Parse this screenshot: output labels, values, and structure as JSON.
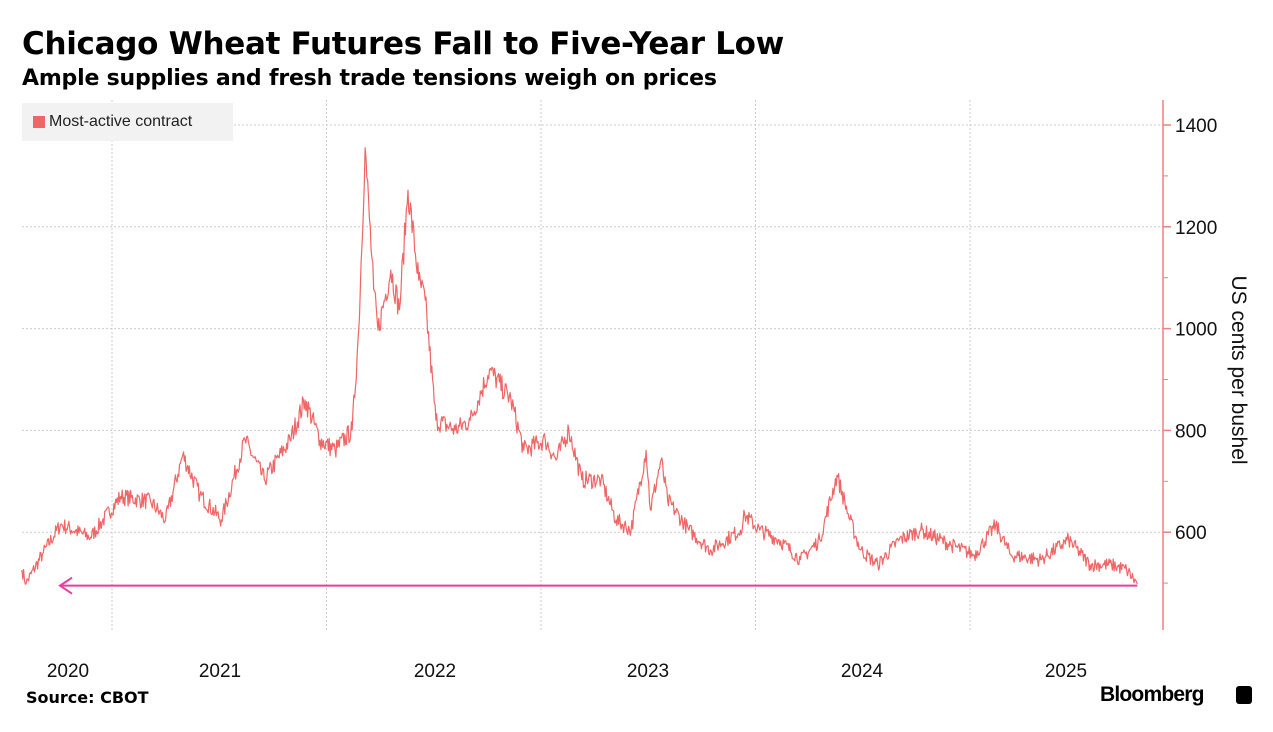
{
  "chart_data": {
    "type": "line",
    "title": "Chicago Wheat Futures Fall to Five-Year Low",
    "subtitle": "Ample supplies and fresh trade tensions weigh on prices",
    "ylabel": "US cents per bushel",
    "xlabel": "",
    "ylim": [
      405,
      1450
    ],
    "xlim": [
      2020.58,
      2025.9
    ],
    "yticks": [
      600,
      800,
      1000,
      1200,
      1400
    ],
    "ytick_labels": [
      "600",
      "800",
      "1000",
      "1200",
      "1400"
    ],
    "xtick_labels": [
      "2020",
      "2021",
      "2022",
      "2023",
      "2024",
      "2025"
    ],
    "grid": true,
    "legend": {
      "position": "top-left",
      "entries": [
        "Most-active contract"
      ]
    },
    "annotation": {
      "type": "arrow",
      "value": 495,
      "description_label": ""
    },
    "series": [
      {
        "name": "Most-active contract",
        "color": "#f06666",
        "points": [
          [
            2020.58,
            526
          ],
          [
            2020.6,
            500
          ],
          [
            2020.68,
            560
          ],
          [
            2020.76,
            615
          ],
          [
            2020.9,
            590
          ],
          [
            2021.04,
            670
          ],
          [
            2021.18,
            660
          ],
          [
            2021.25,
            624
          ],
          [
            2021.33,
            752
          ],
          [
            2021.41,
            673
          ],
          [
            2021.51,
            624
          ],
          [
            2021.62,
            781
          ],
          [
            2021.71,
            703
          ],
          [
            2021.83,
            781
          ],
          [
            2021.9,
            860
          ],
          [
            2021.97,
            781
          ],
          [
            2022.04,
            761
          ],
          [
            2022.12,
            801
          ],
          [
            2022.15,
            997
          ],
          [
            2022.18,
            1355
          ],
          [
            2022.22,
            1076
          ],
          [
            2022.24,
            997
          ],
          [
            2022.3,
            1115
          ],
          [
            2022.34,
            1037
          ],
          [
            2022.38,
            1272
          ],
          [
            2022.43,
            1095
          ],
          [
            2022.46,
            1056
          ],
          [
            2022.51,
            820
          ],
          [
            2022.6,
            801
          ],
          [
            2022.67,
            820
          ],
          [
            2022.76,
            919
          ],
          [
            2022.86,
            860
          ],
          [
            2022.92,
            761
          ],
          [
            2023.02,
            781
          ],
          [
            2023.07,
            742
          ],
          [
            2023.13,
            801
          ],
          [
            2023.19,
            703
          ],
          [
            2023.28,
            703
          ],
          [
            2023.35,
            624
          ],
          [
            2023.42,
            604
          ],
          [
            2023.49,
            761
          ],
          [
            2023.51,
            644
          ],
          [
            2023.56,
            742
          ],
          [
            2023.59,
            663
          ],
          [
            2023.69,
            604
          ],
          [
            2023.79,
            565
          ],
          [
            2023.93,
            604
          ],
          [
            2023.95,
            634
          ],
          [
            2024.02,
            604
          ],
          [
            2024.11,
            585
          ],
          [
            2024.21,
            546
          ],
          [
            2024.3,
            585
          ],
          [
            2024.38,
            712
          ],
          [
            2024.44,
            624
          ],
          [
            2024.49,
            565
          ],
          [
            2024.57,
            536
          ],
          [
            2024.67,
            585
          ],
          [
            2024.77,
            604
          ],
          [
            2024.91,
            575
          ],
          [
            2025.02,
            555
          ],
          [
            2025.12,
            614
          ],
          [
            2025.19,
            555
          ],
          [
            2025.33,
            546
          ],
          [
            2025.46,
            585
          ],
          [
            2025.56,
            536
          ],
          [
            2025.66,
            536
          ],
          [
            2025.73,
            526
          ],
          [
            2025.78,
            498
          ]
        ]
      }
    ]
  },
  "colors": {
    "line": "#f06666",
    "axis": "#f08080",
    "arrow": "#e83e9c",
    "grid": "#cccccc"
  },
  "footer": {
    "source": "Source: CBOT",
    "brand": "Bloomberg"
  }
}
